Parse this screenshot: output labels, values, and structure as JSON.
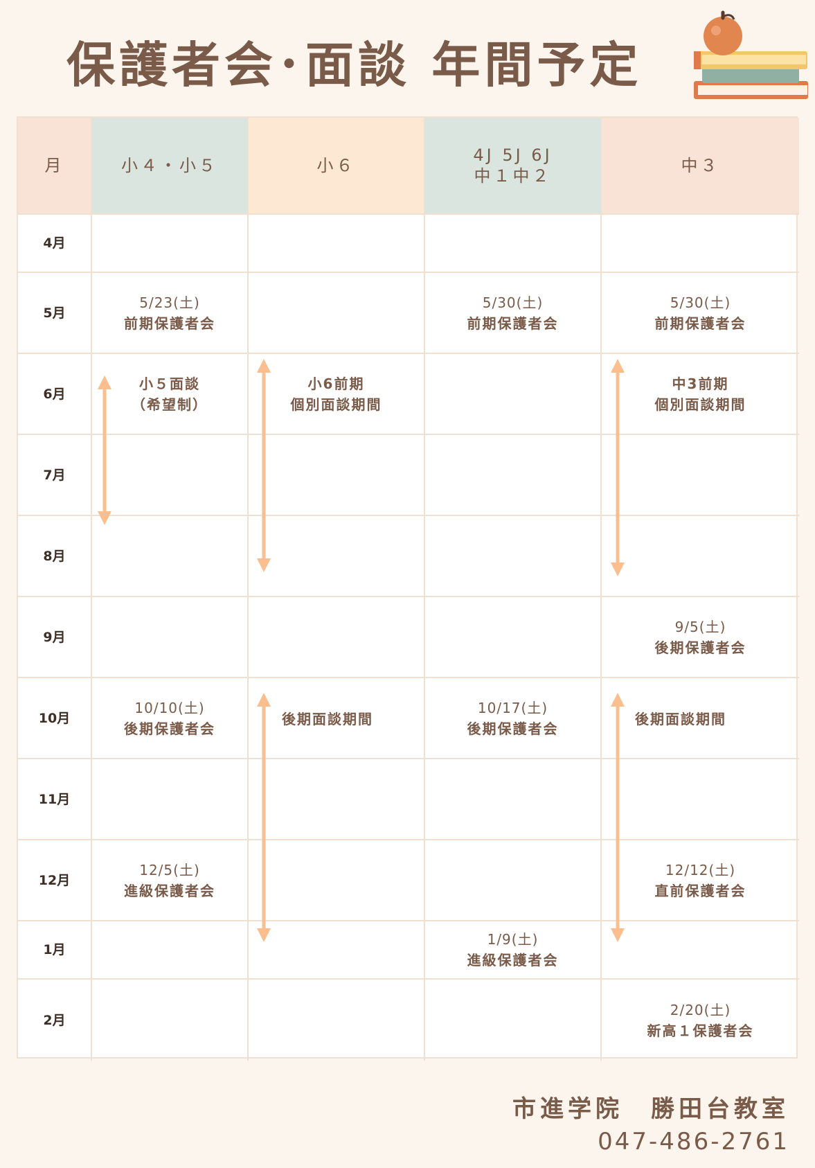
{
  "title": "保護者会･面談 年間予定",
  "colors": {
    "header_month": "#f9e2d6",
    "header_sho45": "#dbe5df",
    "header_sho6": "#fde9d3",
    "header_chu12": "#dbe5df",
    "header_chu3": "#f9e2d6",
    "arrow": "#fbbf8f",
    "text": "#7a5a48",
    "background": "#fbf5ee"
  },
  "icons": {
    "decoration": "books-with-apple-icon"
  },
  "headers": {
    "month": "月",
    "sho45": "小４・小５",
    "sho6": "小６",
    "chu12_line1": "4J 5J 6J",
    "chu12_line2": "中１中２",
    "chu3": "中３"
  },
  "months": [
    "4月",
    "5月",
    "6月",
    "7月",
    "8月",
    "9月",
    "10月",
    "11月",
    "12月",
    "1月",
    "2月"
  ],
  "events": {
    "may_sho45_date": "5/23(土)",
    "may_sho45_label": "前期保護者会",
    "may_chu12_date": "5/30(土)",
    "may_chu12_label": "前期保護者会",
    "may_chu3_date": "5/30(土)",
    "may_chu3_label": "前期保護者会",
    "jun_sho45_line1": "小５面談",
    "jun_sho45_line2": "（希望制）",
    "jun_sho6_line1": "小6前期",
    "jun_sho6_line2": "個別面談期間",
    "jun_chu3_line1": "中3前期",
    "jun_chu3_line2": "個別面談期間",
    "sep_chu3_date": "9/5(土)",
    "sep_chu3_label": "後期保護者会",
    "oct_sho45_date": "10/10(土)",
    "oct_sho45_label": "後期保護者会",
    "oct_sho6_label": "後期面談期間",
    "oct_chu12_date": "10/17(土)",
    "oct_chu12_label": "後期保護者会",
    "oct_chu3_label": "後期面談期間",
    "dec_sho45_date": "12/5(土)",
    "dec_sho45_label": "進級保護者会",
    "dec_chu3_date": "12/12(土)",
    "dec_chu3_label": "直前保護者会",
    "jan_chu12_date": "1/9(土)",
    "jan_chu12_label": "進級保護者会",
    "feb_chu3_date": "2/20(土)",
    "feb_chu3_label": "新高１保護者会"
  },
  "footer": {
    "school": "市進学院　勝田台教室",
    "phone": "047-486-2761"
  }
}
